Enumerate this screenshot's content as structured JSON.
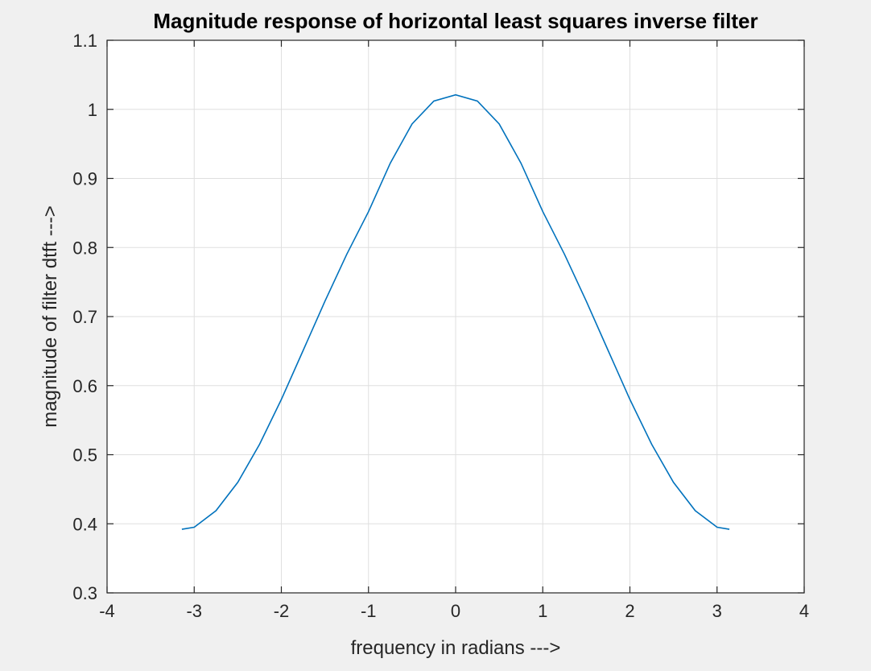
{
  "chart_data": {
    "type": "line",
    "title": "Magnitude response of horizontal least squares inverse filter",
    "xlabel": "frequency in radians --->",
    "ylabel": "magnitude of filter dtft  --->",
    "xlim": [
      -4,
      4
    ],
    "ylim": [
      0.3,
      1.1
    ],
    "xticks": [
      -4,
      -3,
      -2,
      -1,
      0,
      1,
      2,
      3,
      4
    ],
    "xtick_labels": [
      "-4",
      "-3",
      "-2",
      "-1",
      "0",
      "1",
      "2",
      "3",
      "4"
    ],
    "yticks": [
      0.3,
      0.4,
      0.5,
      0.6,
      0.7,
      0.8,
      0.9,
      1.0,
      1.1
    ],
    "ytick_labels": [
      "0.3",
      "0.4",
      "0.5",
      "0.6",
      "0.7",
      "0.8",
      "0.9",
      "1",
      "1.1"
    ],
    "grid": true,
    "line_color": "#0072bd",
    "series": [
      {
        "x": [
          -3.1416,
          -3.0,
          -2.75,
          -2.5,
          -2.25,
          -2.0,
          -1.75,
          -1.5,
          -1.25,
          -1.0,
          -0.75,
          -0.5,
          -0.25,
          0.0,
          0.25,
          0.5,
          0.75,
          1.0,
          1.25,
          1.5,
          1.75,
          2.0,
          2.25,
          2.5,
          2.75,
          3.0,
          3.1416
        ],
        "y": [
          0.392,
          0.395,
          0.419,
          0.46,
          0.515,
          0.58,
          0.651,
          0.722,
          0.79,
          0.852,
          0.922,
          0.979,
          1.012,
          1.021,
          1.012,
          0.979,
          0.922,
          0.852,
          0.79,
          0.722,
          0.651,
          0.58,
          0.515,
          0.46,
          0.419,
          0.395,
          0.392
        ]
      }
    ]
  }
}
